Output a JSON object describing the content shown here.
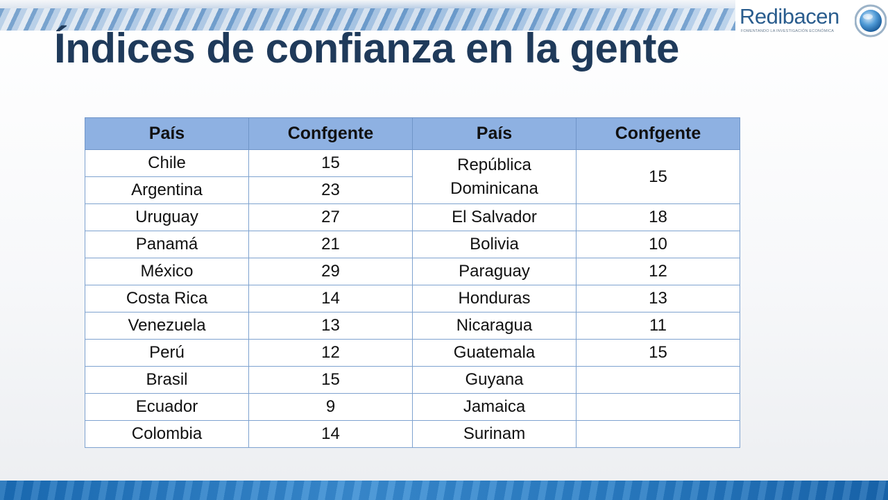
{
  "slide": {
    "title": "Índices de confianza en la gente"
  },
  "logo": {
    "name": "Redibacen",
    "tagline": "Fomentando la investigación económica"
  },
  "table": {
    "headers": [
      "País",
      "Confgente",
      "País",
      "Confgente"
    ],
    "rows": [
      [
        "Chile",
        "15",
        "República Dominicana",
        "15"
      ],
      [
        "Argentina",
        "23",
        "",
        ""
      ],
      [
        "Uruguay",
        "27",
        "El Salvador",
        "18"
      ],
      [
        "Panamá",
        "21",
        "Bolivia",
        "10"
      ],
      [
        "México",
        "29",
        "Paraguay",
        "12"
      ],
      [
        "Costa Rica",
        "14",
        "Honduras",
        "13"
      ],
      [
        "Venezuela",
        "13",
        "Nicaragua",
        "11"
      ],
      [
        "Perú",
        "12",
        "Guatemala",
        "15"
      ],
      [
        "Brasil",
        "15",
        "Guyana",
        ""
      ],
      [
        "Ecuador",
        "9",
        "Jamaica",
        ""
      ],
      [
        "Colombia",
        "14",
        "Surinam",
        ""
      ]
    ]
  },
  "colors": {
    "title": "#1f3a5a",
    "header_fill": "#8eb1e2",
    "grid": "#7ea2cf",
    "brand": "#2a5d8e"
  }
}
